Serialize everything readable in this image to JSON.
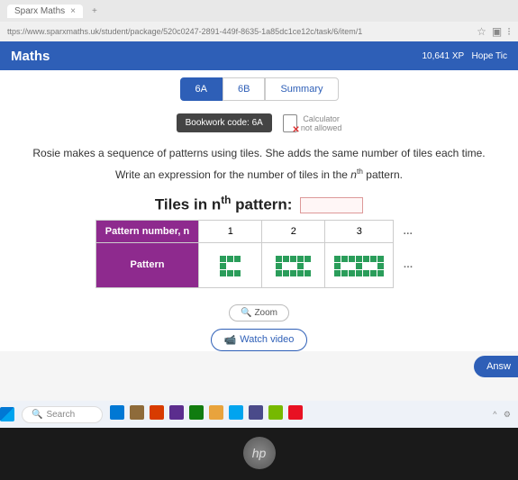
{
  "browser": {
    "tab_title": "Sparx Maths",
    "url": "ttps://www.sparxmaths.uk/student/package/520c0247-2891-449f-8635-1a85dc1ce12c/task/6/item/1"
  },
  "header": {
    "brand": "Maths",
    "xp": "10,641 XP",
    "user": "Hope Tic"
  },
  "tabs": {
    "a": "6A",
    "b": "6B",
    "summary": "Summary"
  },
  "bookwork": "Bookwork code: 6A",
  "calculator": {
    "line1": "Calculator",
    "line2": "not allowed"
  },
  "question": {
    "line1": "Rosie makes a sequence of patterns using tiles. She adds the same number of tiles each time.",
    "line2_pre": "Write an expression for the number of tiles in the ",
    "line2_nth": "n",
    "line2_sup": "th",
    "line2_post": " pattern."
  },
  "tiles_title_pre": "Tiles in n",
  "tiles_title_sup": "th",
  "tiles_title_post": " pattern:",
  "table": {
    "row_hdr_n": "Pattern number, n",
    "row_hdr_pattern": "Pattern",
    "cols": [
      "1",
      "2",
      "3"
    ],
    "dots": "…",
    "patterns": [
      {
        "cols": 3,
        "rows": 3,
        "fill": [
          1,
          1,
          1,
          1,
          0,
          0,
          1,
          1,
          1
        ]
      },
      {
        "cols": 5,
        "rows": 3,
        "fill": [
          1,
          1,
          1,
          1,
          1,
          1,
          0,
          0,
          1,
          0,
          1,
          1,
          1,
          1,
          1
        ]
      },
      {
        "cols": 7,
        "rows": 3,
        "fill": [
          1,
          1,
          1,
          1,
          1,
          1,
          1,
          1,
          0,
          0,
          1,
          0,
          0,
          1,
          1,
          1,
          1,
          1,
          1,
          1,
          1
        ]
      }
    ],
    "tile_color": "#2a9d5a"
  },
  "buttons": {
    "zoom": "Zoom",
    "watch": "Watch video",
    "answer": "Answ"
  },
  "taskbar": {
    "search": "Search",
    "icons": [
      "#0078d4",
      "#8e6b3a",
      "#d83b01",
      "#5b2d8e",
      "#107c10",
      "#e8a33d",
      "#00a4ef",
      "#4a4a8a",
      "#76b900",
      "#e81123"
    ]
  }
}
